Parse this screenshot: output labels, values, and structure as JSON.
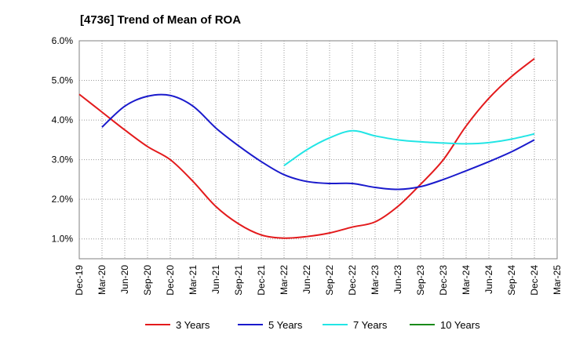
{
  "chart_data": {
    "type": "line",
    "title": "[4736]  Trend of Mean of ROA",
    "xlabel": "",
    "ylabel": "",
    "x_categories": [
      "Dec-19",
      "Mar-20",
      "Jun-20",
      "Sep-20",
      "Dec-20",
      "Mar-21",
      "Jun-21",
      "Sep-21",
      "Dec-21",
      "Mar-22",
      "Jun-22",
      "Sep-22",
      "Dec-22",
      "Mar-23",
      "Jun-23",
      "Sep-23",
      "Dec-23",
      "Mar-24",
      "Jun-24",
      "Sep-24",
      "Dec-24",
      "Mar-25"
    ],
    "ylim": [
      0.5,
      6.0
    ],
    "yticks": [
      1.0,
      2.0,
      3.0,
      4.0,
      5.0,
      6.0
    ],
    "ytick_labels": [
      "1.0%",
      "2.0%",
      "3.0%",
      "4.0%",
      "5.0%",
      "6.0%"
    ],
    "grid": true,
    "legend_position": "bottom",
    "series": [
      {
        "name": "3 Years",
        "color": "#e31a1c",
        "values": [
          4.65,
          4.2,
          3.75,
          3.33,
          3.0,
          2.45,
          1.82,
          1.38,
          1.1,
          1.02,
          1.06,
          1.15,
          1.3,
          1.43,
          1.82,
          2.38,
          3.0,
          3.85,
          4.55,
          5.1,
          5.55,
          null
        ]
      },
      {
        "name": "5 Years",
        "color": "#1a1acc",
        "values": [
          null,
          3.82,
          4.35,
          4.6,
          4.62,
          4.35,
          3.8,
          3.35,
          2.95,
          2.62,
          2.45,
          2.4,
          2.4,
          2.3,
          2.25,
          2.32,
          2.5,
          2.72,
          2.95,
          3.2,
          3.5,
          null
        ]
      },
      {
        "name": "7 Years",
        "color": "#22e5e5",
        "values": [
          null,
          null,
          null,
          null,
          null,
          null,
          null,
          null,
          null,
          2.85,
          3.25,
          3.55,
          3.73,
          3.6,
          3.5,
          3.45,
          3.42,
          3.4,
          3.43,
          3.52,
          3.65,
          null
        ]
      },
      {
        "name": "10 Years",
        "color": "#1a8a1a",
        "values": []
      }
    ]
  }
}
